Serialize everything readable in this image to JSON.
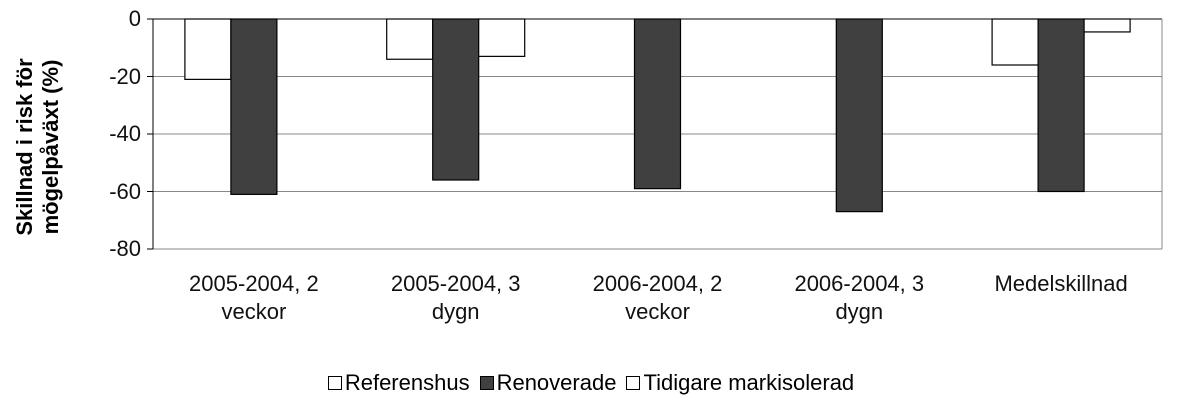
{
  "chart_data": {
    "type": "bar",
    "y_label": "Skillnad i risk för mögelpåväxt (%)",
    "categories": [
      "2005-2004, 2 veckor",
      "2005-2004, 3 dygn",
      "2006-2004, 2 veckor",
      "2006-2004, 3 dygn",
      "Medelskillnad"
    ],
    "series": [
      {
        "name": "Referenshus",
        "color": "#ffffff",
        "values": [
          -21,
          -14,
          null,
          null,
          -16
        ]
      },
      {
        "name": "Renoverade",
        "color": "#404040",
        "values": [
          -61,
          -56,
          -59,
          -67,
          -60
        ]
      },
      {
        "name": "Tidigare markisolerad",
        "color": "#ffffff",
        "values": [
          null,
          -13,
          null,
          null,
          -4.5
        ]
      }
    ],
    "ylim": [
      -80,
      0
    ],
    "yticks": [
      0,
      -20,
      -40,
      -60,
      -80
    ],
    "grid": true
  }
}
